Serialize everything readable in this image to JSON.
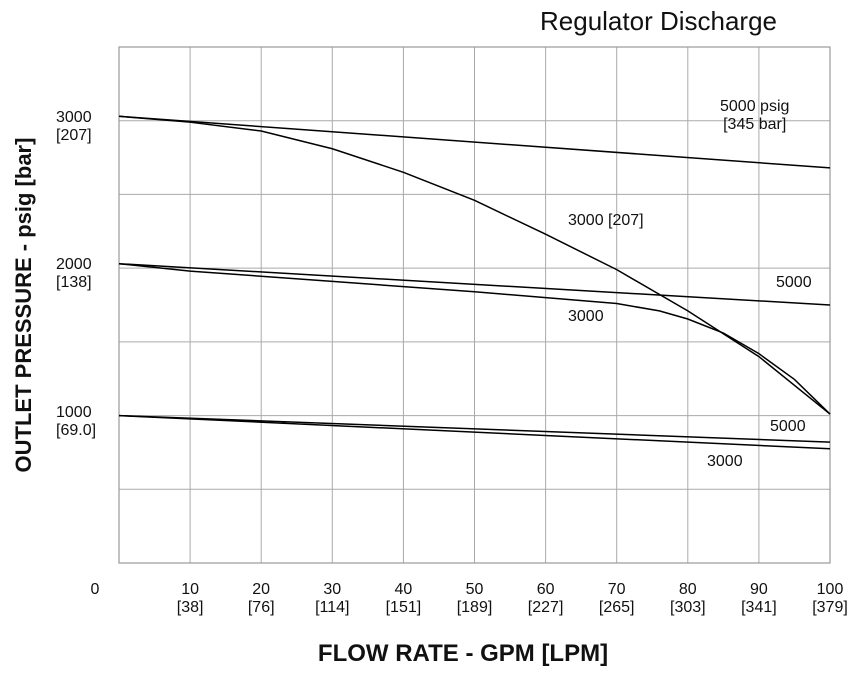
{
  "chart_data": {
    "type": "line",
    "title": "Regulator Discharge",
    "xlabel": "FLOW RATE - GPM [LPM]",
    "ylabel": "OUTLET PRESSURE - psig [bar]",
    "xlim": [
      0,
      100
    ],
    "ylim": [
      0,
      3500
    ],
    "xticks": [
      0,
      {
        "value": 10,
        "label": "10\n[38]"
      },
      {
        "value": 20,
        "label": "20\n[76]"
      },
      {
        "value": 30,
        "label": "30\n[114]"
      },
      {
        "value": 40,
        "label": "40\n[151]"
      },
      {
        "value": 50,
        "label": "50\n[189]"
      },
      {
        "value": 60,
        "label": "60\n[227]"
      },
      {
        "value": 70,
        "label": "70\n[265]"
      },
      {
        "value": 80,
        "label": "80\n[303]"
      },
      {
        "value": 90,
        "label": "90\n[341]"
      },
      {
        "value": 100,
        "label": "100\n[379]"
      }
    ],
    "yticks": [
      {
        "value": 1000,
        "label": "1000\n[69.0]"
      },
      {
        "value": 2000,
        "label": "2000\n[138]"
      },
      {
        "value": 3000,
        "label": "3000\n[207]"
      }
    ],
    "ygrid": [
      500,
      1000,
      1500,
      2000,
      2500,
      3000,
      3500
    ],
    "grid": true,
    "series": [
      {
        "name": "5000 psig\n[345 bar]",
        "color": "#000000",
        "x": [
          0,
          100
        ],
        "values": [
          3030,
          2680
        ]
      },
      {
        "name": "3000 [207]",
        "color": "#000000",
        "x": [
          0,
          10,
          20,
          30,
          40,
          50,
          60,
          70,
          80,
          90,
          100
        ],
        "values": [
          3030,
          2990,
          2930,
          2810,
          2650,
          2460,
          2230,
          1990,
          1710,
          1400,
          1010
        ]
      },
      {
        "name": "5000",
        "color": "#000000",
        "x": [
          0,
          100
        ],
        "values": [
          2030,
          1750
        ]
      },
      {
        "name": "3000",
        "color": "#000000",
        "x": [
          0,
          10,
          30,
          50,
          70,
          76,
          80,
          85,
          90,
          95,
          100
        ],
        "values": [
          2030,
          1980,
          1910,
          1840,
          1760,
          1710,
          1655,
          1560,
          1420,
          1245,
          1010
        ]
      },
      {
        "name": "5000",
        "color": "#000000",
        "x": [
          0,
          100
        ],
        "values": [
          1000,
          820
        ]
      },
      {
        "name": "3000",
        "color": "#000000",
        "x": [
          0,
          100
        ],
        "values": [
          1000,
          775
        ]
      }
    ]
  }
}
